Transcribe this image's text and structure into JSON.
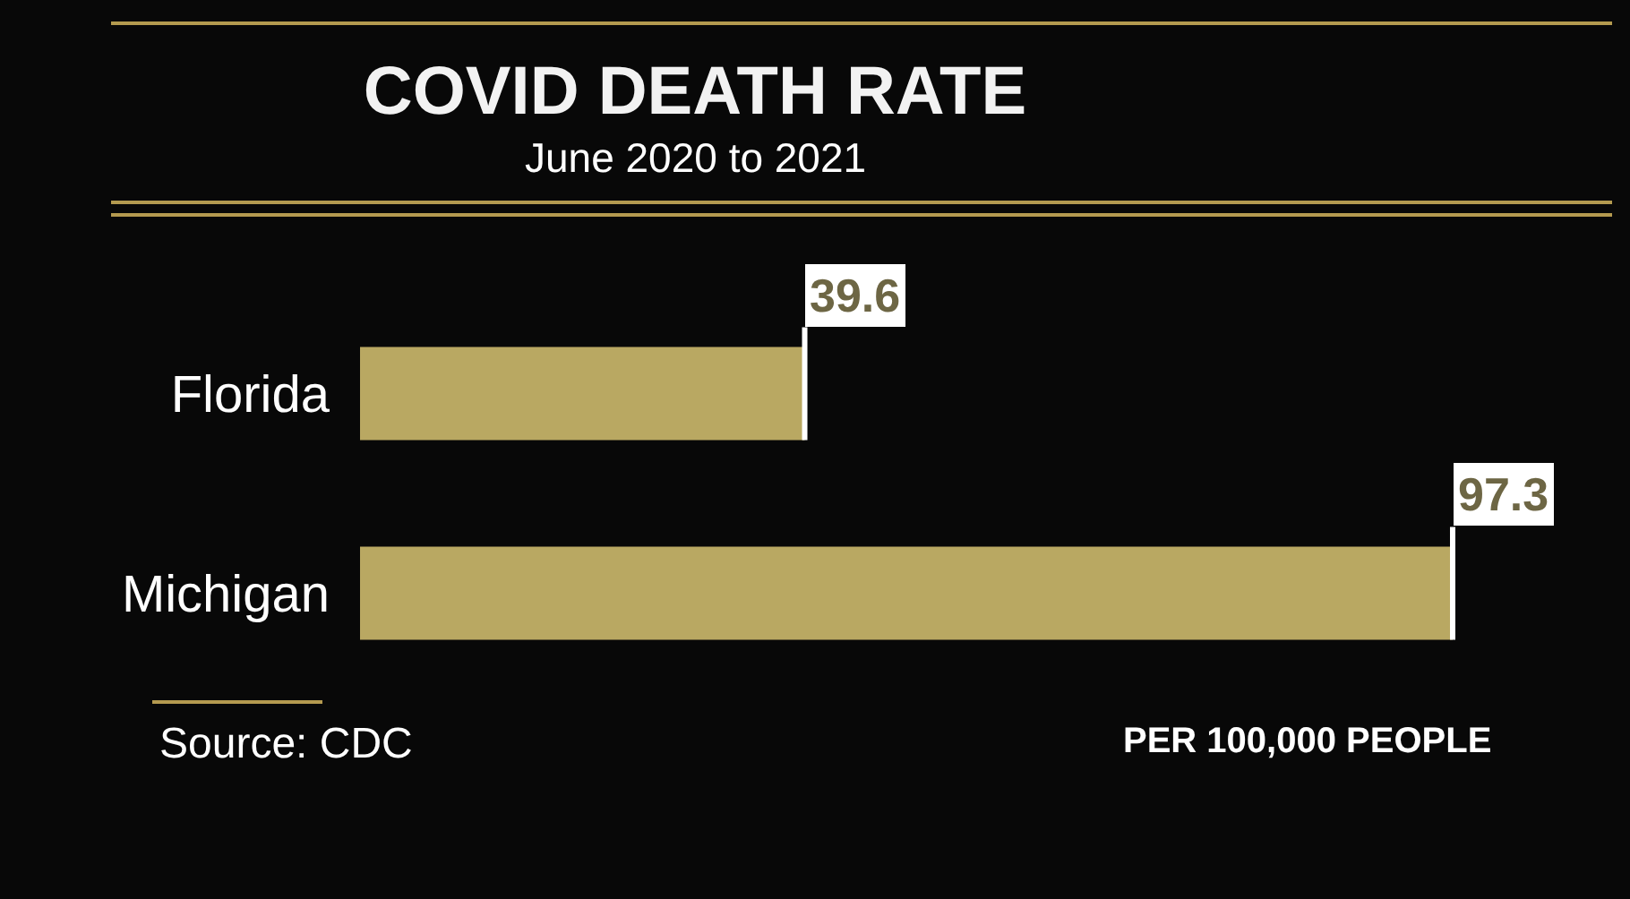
{
  "chart_data": {
    "type": "bar",
    "orientation": "horizontal",
    "title": "COVID DEATH RATE",
    "subtitle": "June 2020 to 2021",
    "categories": [
      "Florida",
      "Michigan"
    ],
    "values": [
      39.6,
      97.3
    ],
    "color": "#b9a862",
    "data_labels": true,
    "tick_labels": "y",
    "grid": false,
    "legend": false,
    "annotations": [
      "Source: CDC",
      "PER 100,000 PEOPLE"
    ]
  }
}
